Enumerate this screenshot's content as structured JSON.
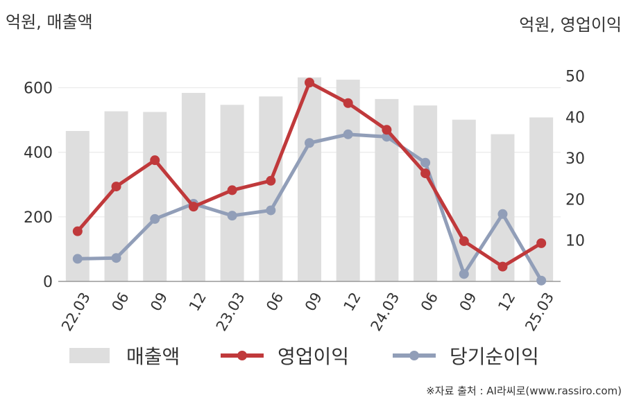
{
  "units": {
    "left": "억원, 매출액",
    "right": "억원, 영업이익"
  },
  "source": "※자료 출처 : AI라씨로(www.rassiro.com)",
  "colors": {
    "bar": "#dedede",
    "operating_profit": "#c0393b",
    "net_income": "#919eb8",
    "grid": "#e6e6e6",
    "axis": "#999999",
    "text": "#333333"
  },
  "chart_data": {
    "type": "bar",
    "categories": [
      "22.03",
      "06",
      "09",
      "12",
      "23.03",
      "06",
      "09",
      "12",
      "24.03",
      "06",
      "09",
      "12",
      "25.03"
    ],
    "left_axis": {
      "ylim": [
        0,
        700
      ],
      "ticks": [
        0,
        200,
        400,
        600
      ]
    },
    "right_axis": {
      "ylim": [
        0,
        55
      ],
      "ticks": [
        10,
        20,
        30,
        40,
        50
      ]
    },
    "legend_position": "bottom",
    "grid": true,
    "series": [
      {
        "name": "매출액",
        "type": "bar",
        "axis": "left",
        "values": [
          466,
          527,
          525,
          584,
          547,
          573,
          632,
          625,
          565,
          545,
          501,
          456,
          508
        ]
      },
      {
        "name": "영업이익",
        "type": "line",
        "axis": "right",
        "values": [
          12.2,
          23.1,
          29.5,
          18.2,
          22.2,
          24.5,
          48.4,
          43.4,
          36.9,
          26.3,
          9.8,
          3.6,
          9.3
        ]
      },
      {
        "name": "당기순이익",
        "type": "line",
        "axis": "right",
        "values": [
          5.5,
          5.7,
          15.2,
          18.9,
          16.0,
          17.3,
          33.7,
          35.8,
          35.2,
          28.9,
          1.8,
          16.4,
          0.2
        ]
      }
    ]
  }
}
